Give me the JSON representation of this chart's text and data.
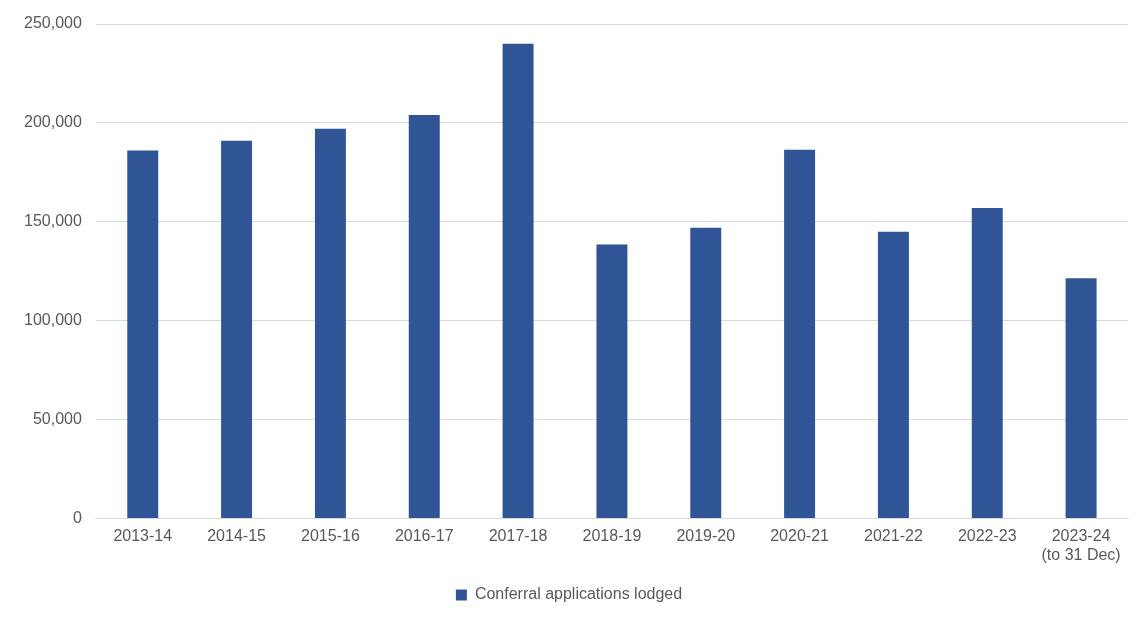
{
  "chart_data": {
    "type": "bar",
    "categories": [
      "2013-14",
      "2014-15",
      "2015-16",
      "2016-17",
      "2017-18",
      "2018-19",
      "2019-20",
      "2020-21",
      "2021-22",
      "2022-23",
      "2023-24\n(to 31 Dec)"
    ],
    "series": [
      {
        "name": "Conferral applications lodged",
        "color": "#2f5597",
        "values": [
          186000,
          191000,
          197000,
          204000,
          240000,
          138500,
          147000,
          186500,
          145000,
          157000,
          121500
        ]
      }
    ],
    "ylim": [
      0,
      250000
    ],
    "yticks": [
      {
        "value": 0,
        "label": "0"
      },
      {
        "value": 50000,
        "label": "50,000"
      },
      {
        "value": 100000,
        "label": "100,000"
      },
      {
        "value": 150000,
        "label": "150,000"
      },
      {
        "value": 200000,
        "label": "200,000"
      },
      {
        "value": 250000,
        "label": "250,000"
      }
    ],
    "grid": "y",
    "legend": "bottom"
  }
}
